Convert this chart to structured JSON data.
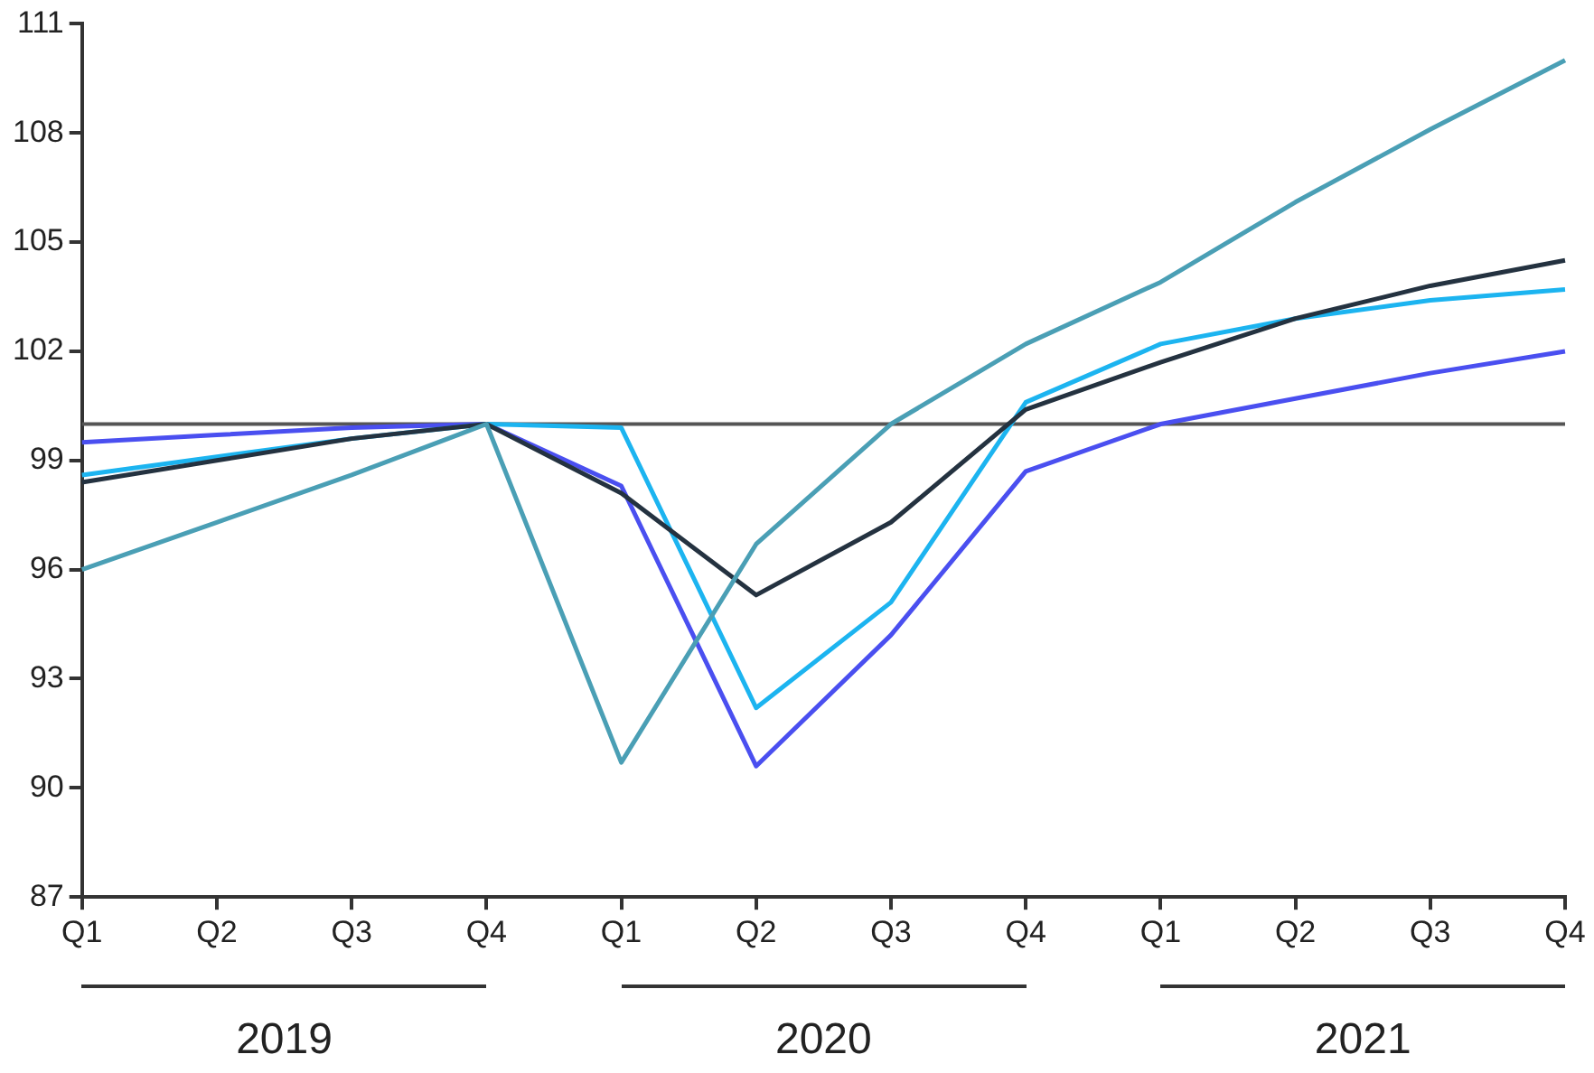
{
  "chart_data": {
    "type": "line",
    "categories": [
      "Q1",
      "Q2",
      "Q3",
      "Q4",
      "Q1",
      "Q2",
      "Q3",
      "Q4",
      "Q1",
      "Q2",
      "Q3",
      "Q4"
    ],
    "series": [
      {
        "color": "#4a9fb5",
        "values": [
          96.0,
          97.3,
          98.6,
          100,
          90.7,
          96.7,
          100,
          102.2,
          103.9,
          106.1,
          108.1,
          110.0
        ]
      },
      {
        "color": "#243240",
        "values": [
          98.4,
          99.0,
          99.6,
          100,
          98.1,
          95.3,
          97.3,
          100.4,
          101.7,
          102.9,
          103.8,
          104.5
        ]
      },
      {
        "color": "#1cb4f0",
        "values": [
          98.6,
          99.1,
          99.6,
          100,
          99.9,
          92.2,
          95.1,
          100.6,
          102.2,
          102.9,
          103.4,
          103.7
        ]
      },
      {
        "color": "#4a4ff0",
        "values": [
          99.5,
          99.7,
          99.9,
          100,
          98.3,
          90.6,
          94.2,
          98.7,
          100.0,
          100.7,
          101.4,
          102.0
        ]
      }
    ],
    "ylim": [
      87,
      111
    ],
    "yticks": [
      87,
      90,
      93,
      96,
      99,
      102,
      105,
      108,
      111
    ],
    "grid": false,
    "legend": false,
    "marker": "none",
    "line_style": "solid",
    "ref_lines": [
      {
        "axis": "y",
        "value": 100,
        "color": "#555555"
      }
    ],
    "annotations": [
      "2019",
      "2020",
      "2021"
    ]
  }
}
